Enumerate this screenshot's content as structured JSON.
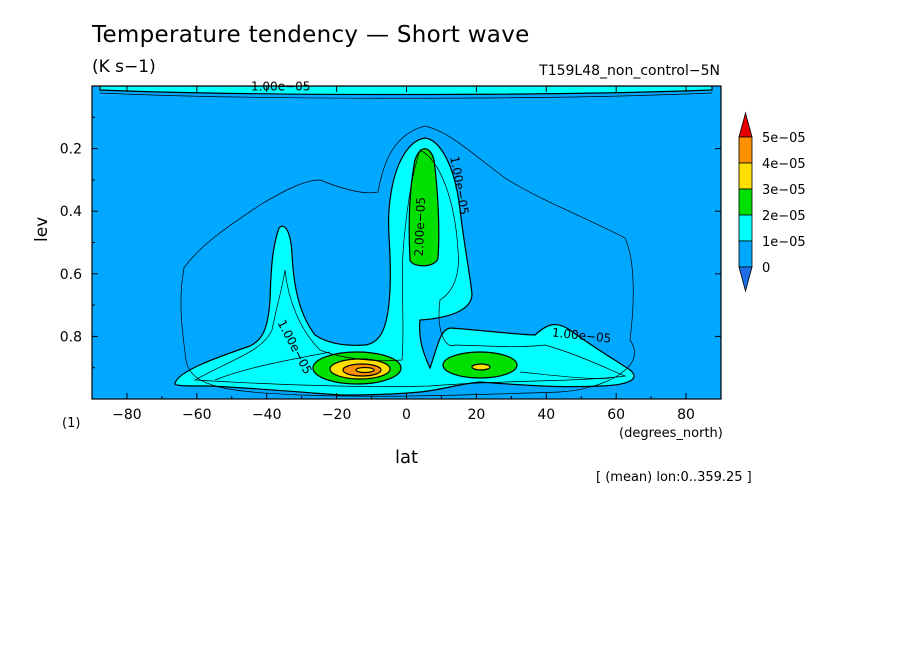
{
  "title": "Temperature tendency — Short wave",
  "units": "(K s−1)",
  "run_label": "T159L48_non_control−5N",
  "subtitle": "[ (mean) lon:0..359.25 ]",
  "colors": {
    "lt0": "#1e6fe6",
    "c0": "#00a8ff",
    "c1": "#00ffff",
    "c2": "#00e000",
    "c3": "#ffe000",
    "c4": "#ff9000",
    "c5": "#e80000"
  },
  "chart_data": {
    "type": "heatmap",
    "variant": "contour",
    "xlabel": "lat",
    "xlabel_units": "(degrees_north)",
    "ylabel": "lev",
    "ylabel_units": "(1)",
    "xlim": [
      -90,
      90
    ],
    "ylim": [
      1.0,
      0.0
    ],
    "xticks": [
      -80,
      -60,
      -40,
      -20,
      0,
      20,
      40,
      60,
      80
    ],
    "yticks": [
      0.2,
      0.4,
      0.6,
      0.8
    ],
    "colorbar": {
      "levels": [
        "0",
        "1e−05",
        "2e−05",
        "3e−05",
        "4e−05",
        "5e−05"
      ],
      "extend": "both"
    },
    "contour_labels": [
      {
        "text": "1.00e−05",
        "lat": -33,
        "lev": 0.84
      },
      {
        "text": "2.00e−05",
        "lat": 5,
        "lev": 0.45
      },
      {
        "text": "1.00e−05",
        "lat": 14,
        "lev": 0.32
      },
      {
        "text": "1.00e−05",
        "lat": 50,
        "lev": 0.81
      },
      {
        "text": "1.00e−05",
        "lat": -36,
        "lev": 0.015
      }
    ],
    "regions": [
      {
        "level": "c1",
        "note": "1e−05–2e−05 band: lower troposphere 65S–65N, towers at 35S (to lev 0.45) and 5N (to lev 0.16)"
      },
      {
        "level": "c2",
        "note": "2e−05–3e−05: upper tower at 5N (lev 0.2–0.55), low cores at 15S and 20N near lev 0.9"
      },
      {
        "level": "c3",
        "note": "3e−05–4e−05: core near 13S, lev 0.9"
      },
      {
        "level": "c4",
        "note": "4e−05–5e−05: maximum near 12S, lev 0.9"
      }
    ]
  }
}
